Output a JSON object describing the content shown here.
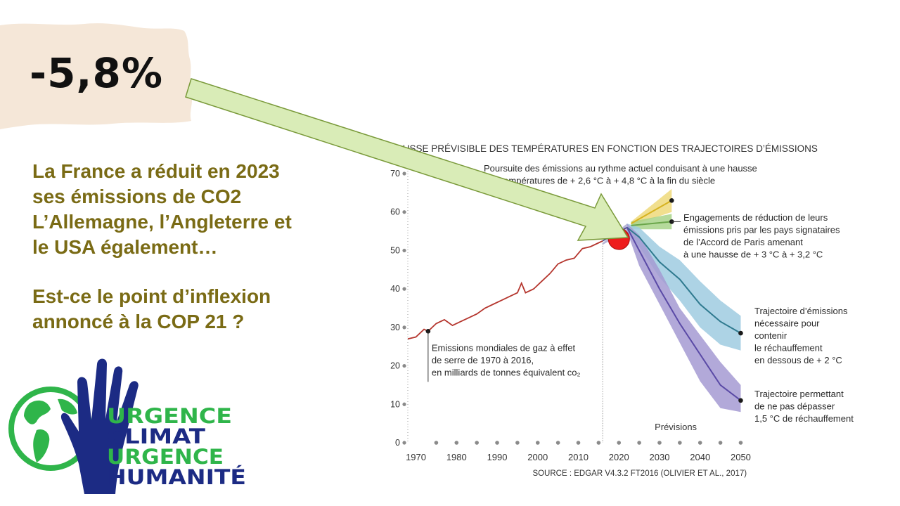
{
  "slide": {
    "headline": "-5,8%",
    "statement_lines": [
      "La France a réduit en 2023",
      "ses émissions de CO2",
      "L’Allemagne, l’Angleterre et",
      "le USA également…"
    ],
    "question_lines": [
      "Est-ce le point d’inflexion",
      "annoncé à la COP 21 ?"
    ]
  },
  "logo": {
    "lines": [
      "URGENCE",
      "CLIMAT",
      "URGENCE",
      "HUMANITÉ"
    ],
    "colors": {
      "green": "#2fb54a",
      "navy": "#1c2b84"
    }
  },
  "colors": {
    "text_olive": "#7a6b15",
    "brush": "#f5e7d8",
    "arrow_fill": "#d9ecb7",
    "arrow_stroke": "#7a9a3a",
    "marker": "#ee1c1c"
  },
  "chart_data": {
    "type": "line",
    "title": "HAUSSE PRÉVISIBLE DES TEMPÉRATURES EN FONCTION DES TRAJECTOIRES D’ÉMISSIONS",
    "source": "SOURCE : EDGAR V4.3.2 FT2016 (OLIVIER ET AL., 2017)",
    "forecast_label": "Prévisions",
    "forecast_start": 2016,
    "xlim": [
      1968,
      2052
    ],
    "ylim": [
      0,
      70
    ],
    "x_ticks": [
      1970,
      1980,
      1990,
      2000,
      2010,
      2020,
      2030,
      2040,
      2050
    ],
    "y_ticks": [
      0,
      10,
      20,
      30,
      40,
      50,
      60,
      70
    ],
    "historical": {
      "name": "Emissions mondiales de gaz à effet de serre de 1970 à 2016, en milliards de tonnes équivalent co2",
      "label_lines": [
        "Emissions mondiales de gaz à effet",
        "de serre de 1970 à 2016,",
        "en milliards de tonnes équivalent co₂"
      ],
      "color": "#b5362e",
      "x": [
        1968,
        1970,
        1972,
        1973,
        1975,
        1977,
        1979,
        1981,
        1983,
        1985,
        1987,
        1989,
        1991,
        1993,
        1995,
        1996,
        1997,
        1999,
        2001,
        2003,
        2005,
        2007,
        2009,
        2011,
        2013,
        2015,
        2016
      ],
      "y": [
        27,
        27.5,
        29.5,
        29,
        31,
        32,
        30.5,
        31.5,
        32.5,
        33.5,
        35,
        36,
        37,
        38,
        39,
        41.5,
        39,
        40,
        42,
        44,
        46.5,
        47.5,
        48,
        50.5,
        51,
        52,
        52.5
      ]
    },
    "forecast_start_point": {
      "x": 2016,
      "y": 52.5
    },
    "highlight_point": {
      "x": 2020,
      "y": 53
    },
    "series": [
      {
        "name": "Poursuite des émissions au rythme actuel conduisant à une hausse des températures de + 2,6 °C à + 4,8 °C à la fin du siècle",
        "label_lines": [
          "Poursuite des émissions au rythme actuel conduisant à une hausse",
          "des températures de + 2,6 °C à + 4,8 °C à la fin du siècle"
        ],
        "color": "#d6b21f",
        "band_color": "#efd97a",
        "x": [
          2023,
          2033
        ],
        "y": [
          57,
          63
        ],
        "band_lower": [
          56.5,
          60
        ],
        "band_upper": [
          57.5,
          66
        ]
      },
      {
        "name": "Engagements de réduction de leurs émissions pris par les pays signataires de l’Accord de Paris amenant à une hausse de + 3 °C à + 3,2 °C",
        "label_lines": [
          "Engagements de réduction de leurs",
          "émissions pris par les pays signataires",
          "de l’Accord de Paris amenant",
          "à une hausse de + 3 °C à + 3,2 °C"
        ],
        "color": "#6aa64a",
        "band_color": "#a8d38a",
        "x": [
          2023,
          2033
        ],
        "y": [
          56.5,
          57.5
        ],
        "band_lower": [
          55.5,
          55.5
        ],
        "band_upper": [
          57.5,
          59.5
        ]
      },
      {
        "name": "Trajectoire d’émissions nécessaire pour contenir le réchauffement en dessous de + 2 °C",
        "label_lines": [
          "Trajectoire d’émissions",
          "nécessaire pour",
          "contenir",
          "le réchauffement",
          "en dessous de + 2 °C"
        ],
        "color": "#2f7a8f",
        "band_color": "#9fcbe0",
        "x": [
          2022,
          2025,
          2030,
          2035,
          2040,
          2045,
          2050
        ],
        "y": [
          56,
          53.5,
          47,
          42.5,
          36,
          31.5,
          28.5
        ],
        "band_lower": [
          55,
          51,
          43,
          37,
          30,
          25.5,
          24
        ],
        "band_upper": [
          57,
          56,
          51,
          47.5,
          42,
          37,
          33
        ]
      },
      {
        "name": "Trajectoire permettant de ne pas dépasser 1,5 °C de réchauffement",
        "label_lines": [
          "Trajectoire permettant",
          "de ne pas dépasser",
          "1,5 °C de réchauffement"
        ],
        "color": "#5a4aa6",
        "band_color": "#a59ad2",
        "x": [
          2022,
          2025,
          2030,
          2035,
          2040,
          2045,
          2050
        ],
        "y": [
          56,
          50,
          40,
          31,
          23,
          15,
          11
        ],
        "band_lower": [
          55,
          46,
          36,
          26,
          16,
          9,
          8
        ],
        "band_upper": [
          57,
          54,
          45,
          35,
          28,
          21,
          15
        ]
      }
    ]
  }
}
